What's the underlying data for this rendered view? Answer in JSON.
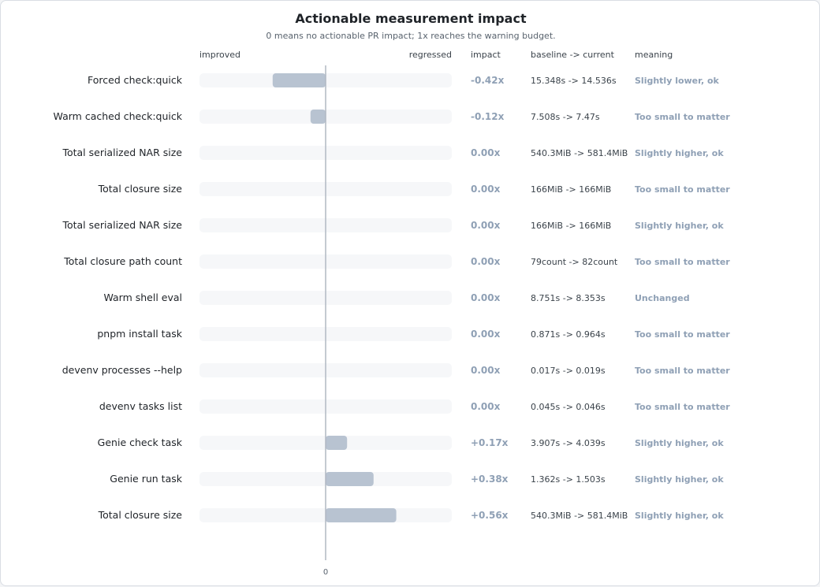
{
  "chart_data": {
    "type": "bar",
    "orientation": "horizontal",
    "title": "Actionable measurement impact",
    "subtitle": "0 means no actionable PR impact; 1x reaches the warning budget.",
    "left_direction_label": "improved",
    "right_direction_label": "regressed",
    "columns": {
      "impact": "impact",
      "change": "baseline -> current",
      "meaning": "meaning"
    },
    "xtick_label": "0",
    "xlim": [
      -1,
      1
    ],
    "grid": false,
    "colors": {
      "improved": "#16875a",
      "regressed": "#d63a3a",
      "bar": "#b8c3d1",
      "track": "#f6f7f9",
      "zero_line": "#b0b8c2",
      "muted_text": "#8fa0b5"
    },
    "rows": [
      {
        "label": "Forced check:quick",
        "value": -0.42,
        "impact": "-0.42x",
        "change": "15.348s -> 14.536s",
        "meaning": "Slightly lower, ok"
      },
      {
        "label": "Warm cached check:quick",
        "value": -0.12,
        "impact": "-0.12x",
        "change": "7.508s -> 7.47s",
        "meaning": "Too small to matter"
      },
      {
        "label": "Total serialized NAR size",
        "value": 0.0,
        "impact": "0.00x",
        "change": "540.3MiB -> 581.4MiB",
        "meaning": "Slightly higher, ok"
      },
      {
        "label": "Total closure size",
        "value": 0.0,
        "impact": "0.00x",
        "change": "166MiB -> 166MiB",
        "meaning": "Too small to matter"
      },
      {
        "label": "Total serialized NAR size",
        "value": 0.0,
        "impact": "0.00x",
        "change": "166MiB -> 166MiB",
        "meaning": "Slightly higher, ok"
      },
      {
        "label": "Total closure path count",
        "value": 0.0,
        "impact": "0.00x",
        "change": "79count -> 82count",
        "meaning": "Too small to matter"
      },
      {
        "label": "Warm shell eval",
        "value": 0.0,
        "impact": "0.00x",
        "change": "8.751s -> 8.353s",
        "meaning": "Unchanged"
      },
      {
        "label": "pnpm install task",
        "value": 0.0,
        "impact": "0.00x",
        "change": "0.871s -> 0.964s",
        "meaning": "Too small to matter"
      },
      {
        "label": "devenv processes --help",
        "value": 0.0,
        "impact": "0.00x",
        "change": "0.017s -> 0.019s",
        "meaning": "Too small to matter"
      },
      {
        "label": "devenv tasks list",
        "value": 0.0,
        "impact": "0.00x",
        "change": "0.045s -> 0.046s",
        "meaning": "Too small to matter"
      },
      {
        "label": "Genie check task",
        "value": 0.17,
        "impact": "+0.17x",
        "change": "3.907s -> 4.039s",
        "meaning": "Slightly higher, ok"
      },
      {
        "label": "Genie run task",
        "value": 0.38,
        "impact": "+0.38x",
        "change": "1.362s -> 1.503s",
        "meaning": "Slightly higher, ok"
      },
      {
        "label": "Total closure size",
        "value": 0.56,
        "impact": "+0.56x",
        "change": "540.3MiB -> 581.4MiB",
        "meaning": "Slightly higher, ok"
      }
    ]
  }
}
